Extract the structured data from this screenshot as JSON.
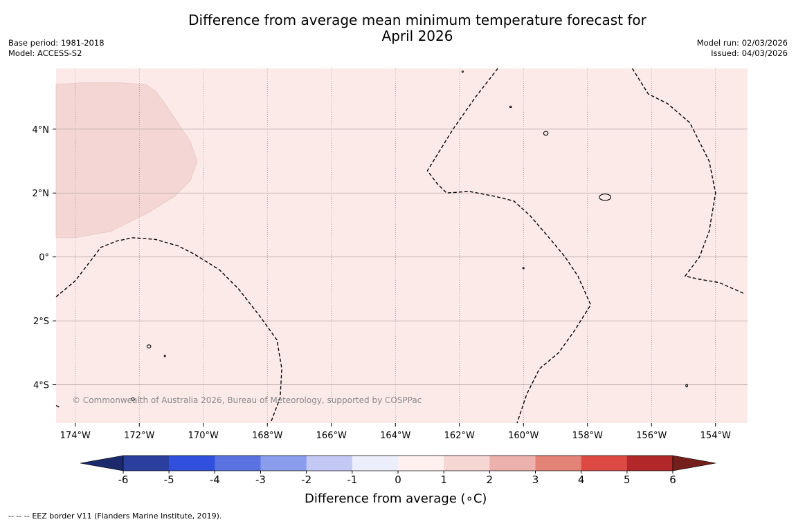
{
  "title": {
    "line1": "Difference from average mean minimum temperature forecast for",
    "line2": "April 2026"
  },
  "meta": {
    "base_period": "Base period: 1981-2018",
    "model": "Model: ACCESS-S2",
    "model_run": "Model run: 02/03/2026",
    "issued": "Issued: 04/03/2026"
  },
  "map": {
    "lon_range": [
      -174.6,
      -153.0
    ],
    "lat_range": [
      -5.2,
      5.9
    ],
    "lon_ticks": [
      {
        "value": -174,
        "label": "174°W"
      },
      {
        "value": -172,
        "label": "172°W"
      },
      {
        "value": -170,
        "label": "170°W"
      },
      {
        "value": -168,
        "label": "168°W"
      },
      {
        "value": -166,
        "label": "166°W"
      },
      {
        "value": -164,
        "label": "164°W"
      },
      {
        "value": -162,
        "label": "162°W"
      },
      {
        "value": -160,
        "label": "160°W"
      },
      {
        "value": -158,
        "label": "158°W"
      },
      {
        "value": -156,
        "label": "156°W"
      },
      {
        "value": -154,
        "label": "154°W"
      }
    ],
    "lat_ticks": [
      {
        "value": 4,
        "label": "4°N"
      },
      {
        "value": 2,
        "label": "2°N"
      },
      {
        "value": 0,
        "label": "0°"
      },
      {
        "value": -2,
        "label": "2°S"
      },
      {
        "value": -4,
        "label": "4°S"
      }
    ],
    "background_anomaly": "0 to 1",
    "background_color": "#fbeae8",
    "warm_region": {
      "anomaly": "1 to 2",
      "color": "#f4d7d4",
      "polygon": [
        [
          -174.6,
          5.4
        ],
        [
          -173.8,
          5.45
        ],
        [
          -172.6,
          5.45
        ],
        [
          -171.8,
          5.4
        ],
        [
          -171.5,
          5.2
        ],
        [
          -171.2,
          4.8
        ],
        [
          -170.8,
          4.2
        ],
        [
          -170.4,
          3.6
        ],
        [
          -170.2,
          3.0
        ],
        [
          -170.4,
          2.4
        ],
        [
          -170.9,
          1.9
        ],
        [
          -171.7,
          1.4
        ],
        [
          -172.9,
          0.8
        ],
        [
          -174.0,
          0.6
        ],
        [
          -174.6,
          0.6
        ]
      ]
    },
    "eez_borders": [
      [
        [
          -174.6,
          -1.25
        ],
        [
          -174.0,
          -0.75
        ],
        [
          -173.2,
          0.3
        ],
        [
          -172.7,
          0.5
        ],
        [
          -172.2,
          0.6
        ],
        [
          -171.5,
          0.55
        ],
        [
          -170.8,
          0.35
        ],
        [
          -170.3,
          0.1
        ],
        [
          -169.5,
          -0.4
        ],
        [
          -168.9,
          -1.0
        ],
        [
          -168.2,
          -1.9
        ],
        [
          -167.7,
          -2.6
        ],
        [
          -167.55,
          -3.5
        ],
        [
          -167.6,
          -4.4
        ],
        [
          -167.9,
          -5.2
        ]
      ],
      [
        [
          -160.8,
          5.9
        ],
        [
          -161.5,
          5.0
        ],
        [
          -162.2,
          4.0
        ],
        [
          -163.0,
          2.7
        ],
        [
          -162.7,
          2.3
        ],
        [
          -162.4,
          2.0
        ],
        [
          -161.7,
          2.05
        ],
        [
          -160.9,
          1.9
        ],
        [
          -160.3,
          1.75
        ],
        [
          -159.8,
          1.3
        ],
        [
          -159.2,
          0.6
        ],
        [
          -158.7,
          0.0
        ],
        [
          -158.3,
          -0.6
        ],
        [
          -157.9,
          -1.5
        ],
        [
          -158.4,
          -2.3
        ],
        [
          -158.9,
          -3.0
        ],
        [
          -159.5,
          -3.5
        ],
        [
          -159.9,
          -4.3
        ],
        [
          -160.2,
          -5.2
        ]
      ],
      [
        [
          -156.6,
          5.9
        ],
        [
          -156.1,
          5.1
        ],
        [
          -155.5,
          4.8
        ],
        [
          -154.8,
          4.2
        ],
        [
          -154.2,
          3.0
        ],
        [
          -154.0,
          2.0
        ],
        [
          -154.2,
          0.8
        ],
        [
          -154.5,
          0.0
        ],
        [
          -154.95,
          -0.6
        ],
        [
          -154.5,
          -0.7
        ],
        [
          -153.9,
          -0.8
        ],
        [
          -153.1,
          -1.15
        ]
      ],
      [
        [
          -174.6,
          -4.65
        ],
        [
          -174.5,
          -4.7
        ]
      ]
    ],
    "islands": [
      {
        "lon": -159.3,
        "lat": 3.87,
        "rx": 0.07,
        "ry": 0.06
      },
      {
        "lon": -157.45,
        "lat": 1.87,
        "rx": 0.18,
        "ry": 0.1
      },
      {
        "lon": -171.7,
        "lat": -2.8,
        "rx": 0.06,
        "ry": 0.05
      },
      {
        "lon": -171.2,
        "lat": -3.1,
        "rx": 0.01,
        "ry": 0.02
      },
      {
        "lon": -172.2,
        "lat": -4.45,
        "rx": 0.05,
        "ry": 0.04
      },
      {
        "lon": -154.9,
        "lat": -4.03,
        "rx": 0.03,
        "ry": 0.04
      },
      {
        "lon": -160.4,
        "lat": 4.7,
        "rx": 0.03,
        "ry": 0.02
      },
      {
        "lon": -161.9,
        "lat": 5.8,
        "rx": 0.02,
        "ry": 0.02
      },
      {
        "lon": -160.0,
        "lat": -0.35,
        "rx": 0.01,
        "ry": 0.01
      }
    ],
    "copyright": "© Commonwealth of Australia 2026, Bureau of Meteorology, supported by COSPPac"
  },
  "colorbar": {
    "label": "Difference from average (",
    "label_unit": "∘C)",
    "range": [
      -6,
      6
    ],
    "ticks": [
      "-6",
      "-5",
      "-4",
      "-3",
      "-2",
      "-1",
      "0",
      "1",
      "2",
      "3",
      "4",
      "5",
      "6"
    ],
    "colors": [
      "#2a3f9e",
      "#3050dd",
      "#5a72e2",
      "#8a9cec",
      "#c3c9f4",
      "#eceefb",
      "#fdf0ee",
      "#f5d6d3",
      "#edb1ad",
      "#e38378",
      "#dc4a43",
      "#b2282a"
    ],
    "extend_low_color": "#1c2a6b",
    "extend_high_color": "#741f1c"
  },
  "legend": {
    "line_symbol": "--  --  --",
    "eez_label": "EEZ border V11 (Flanders Marine Institute, 2019)."
  }
}
